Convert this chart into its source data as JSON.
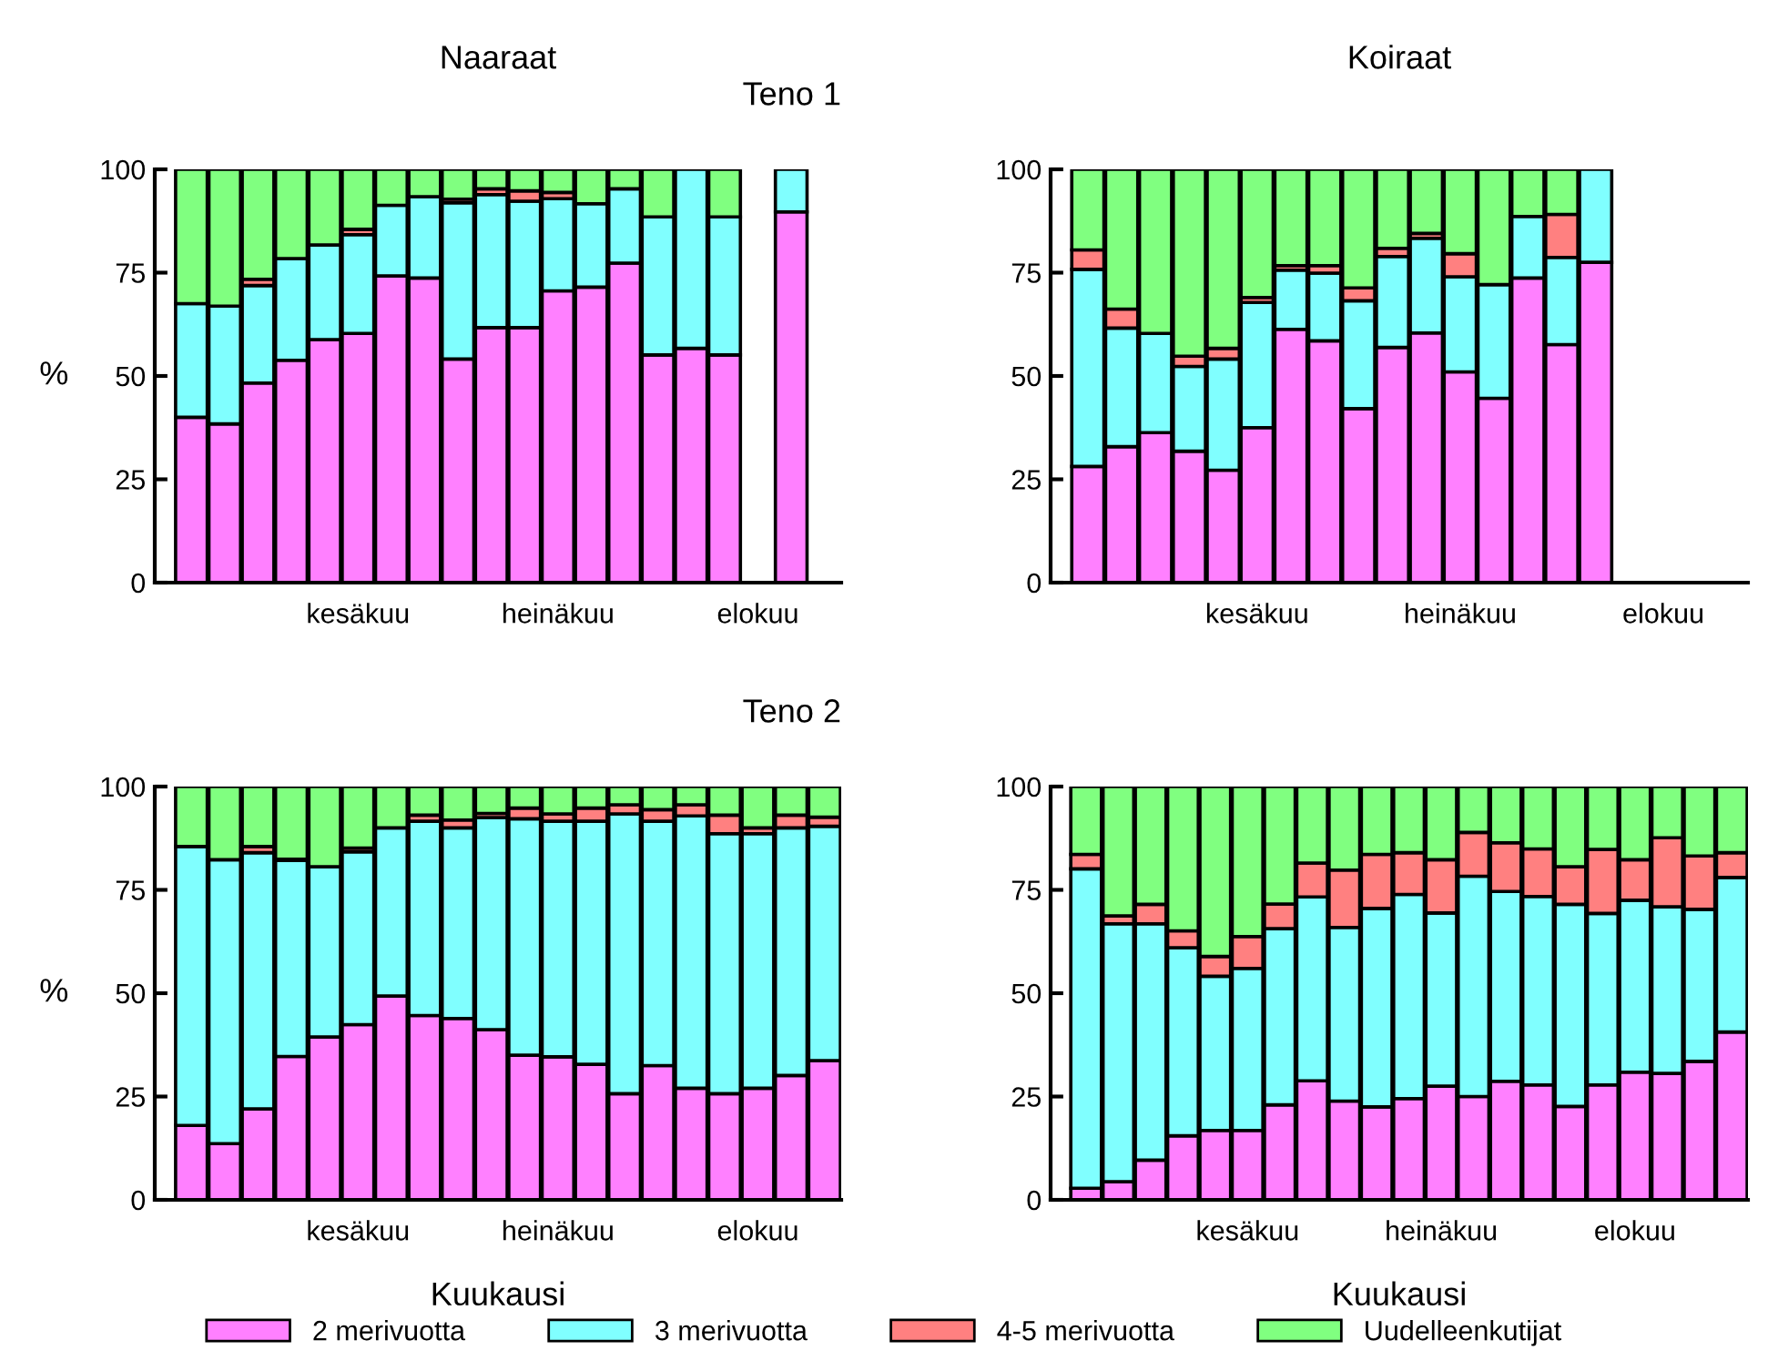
{
  "chart_data": [
    {
      "type": "bar",
      "stacked": true,
      "title": "Naaraat",
      "subtitle": "Teno 1",
      "ylabel": "%",
      "grid": false,
      "ylim": [
        0,
        100
      ],
      "yticks": [
        0,
        25,
        50,
        75,
        100
      ],
      "categories": [
        null,
        null,
        null,
        null,
        null,
        "kesäkuu",
        null,
        null,
        null,
        null,
        null,
        "heinäkuu",
        null,
        null,
        null,
        null,
        null,
        "elokuu",
        null,
        null
      ],
      "series": [
        {
          "color": "#ff80ff",
          "values": [
            40,
            38.4,
            48.3,
            53.8,
            58.8,
            60.3,
            74.2,
            73.7,
            54.1,
            61.7,
            61.7,
            70.6,
            71.5,
            77.3,
            55.1,
            56.7,
            55.1,
            null,
            89.7,
            null
          ]
        },
        {
          "color": "#80ffff",
          "values": [
            27.5,
            28.5,
            23.6,
            24.6,
            22.9,
            23.9,
            17.1,
            19.7,
            37.8,
            32.2,
            30.6,
            22.3,
            20.2,
            18,
            33.4,
            43.3,
            33.4,
            null,
            10.3,
            null
          ]
        },
        {
          "color": "#ff8080",
          "values": [
            0,
            0,
            1.5,
            0,
            0,
            1.3,
            null,
            null,
            0.9,
            1.4,
            2.5,
            1.5,
            0,
            0,
            0,
            0,
            0,
            null,
            0,
            null
          ]
        },
        {
          "color": "#80ff80",
          "values": [
            32.5,
            33.1,
            26.6,
            21.6,
            18.3,
            14.5,
            8.7,
            6.6,
            7.2,
            4.7,
            5.2,
            5.6,
            8.3,
            4.7,
            11.5,
            0,
            11.5,
            null,
            0,
            null
          ]
        }
      ]
    },
    {
      "type": "bar",
      "stacked": true,
      "title": "Koiraat",
      "grid": false,
      "ylim": [
        0,
        100
      ],
      "yticks": [
        0,
        25,
        50,
        75,
        100
      ],
      "categories": [
        null,
        null,
        null,
        null,
        null,
        "kesäkuu",
        null,
        null,
        null,
        null,
        null,
        "heinäkuu",
        null,
        null,
        null,
        null,
        null,
        "elokuu",
        null,
        null
      ],
      "series": [
        {
          "color": "#ff80ff",
          "values": [
            28.1,
            32.9,
            36.3,
            31.8,
            27.2,
            37.5,
            61.3,
            58.5,
            42.1,
            56.9,
            60.4,
            51,
            44.6,
            73.7,
            57.6,
            77.5,
            null,
            null,
            null,
            null
          ]
        },
        {
          "color": "#80ffff",
          "values": [
            47.7,
            28.7,
            24,
            20.5,
            26.9,
            30.3,
            14.3,
            16.4,
            26.1,
            22,
            22.9,
            23,
            27.5,
            14.9,
            21.1,
            22.5,
            null,
            null,
            null,
            null
          ]
        },
        {
          "color": "#ff8080",
          "values": [
            4.7,
            4.6,
            0,
            2.5,
            2.6,
            1.2,
            1.1,
            1.8,
            3.1,
            2,
            1.2,
            5.6,
            0,
            0,
            10.4,
            0,
            null,
            null,
            null,
            null
          ]
        },
        {
          "color": "#80ff80",
          "values": [
            19.5,
            33.8,
            39.7,
            45.2,
            43.3,
            31,
            23.3,
            23.3,
            28.7,
            19.1,
            15.5,
            20.4,
            27.9,
            11.4,
            10.9,
            0,
            null,
            null,
            null,
            null
          ]
        }
      ]
    },
    {
      "type": "bar",
      "stacked": true,
      "subtitle": "Teno 2",
      "ylabel": "%",
      "xlabel": "Kuukausi",
      "grid": false,
      "ylim": [
        0,
        100
      ],
      "yticks": [
        0,
        25,
        50,
        75,
        100
      ],
      "categories": [
        null,
        null,
        null,
        null,
        null,
        "kesäkuu",
        null,
        null,
        null,
        null,
        null,
        "heinäkuu",
        null,
        null,
        null,
        null,
        null,
        "elokuu",
        null,
        null
      ],
      "series": [
        {
          "color": "#ff80ff",
          "values": [
            18,
            13.6,
            22,
            34.7,
            39.4,
            42.4,
            49.3,
            44.6,
            43.9,
            41.2,
            35,
            34.6,
            32.8,
            25.7,
            32.5,
            27,
            25.7,
            27,
            30.1,
            33.7
          ]
        },
        {
          "color": "#80ffff",
          "values": [
            67.5,
            68.7,
            62,
            47.4,
            41.2,
            41.8,
            40.7,
            47,
            46.1,
            51.3,
            57.2,
            57,
            58.8,
            67.7,
            59.1,
            65.9,
            62.9,
            61.6,
            59.9,
            56.7
          ]
        },
        {
          "color": "#ff8080",
          "values": [
            0,
            0,
            1.5,
            0.3,
            0,
            0.9,
            null,
            1.5,
            1.9,
            1,
            2.6,
            1.8,
            3.2,
            2.2,
            2.8,
            2.7,
            4.5,
            1.4,
            3.1,
            2.2
          ]
        },
        {
          "color": "#80ff80",
          "values": [
            14.5,
            17.7,
            14.5,
            17.6,
            19.4,
            14.9,
            10,
            6.9,
            8.1,
            6.5,
            5.2,
            6.6,
            5.2,
            4.4,
            5.6,
            4.4,
            6.9,
            10,
            6.9,
            7.4
          ]
        }
      ]
    },
    {
      "type": "bar",
      "stacked": true,
      "xlabel": "Kuukausi",
      "grid": false,
      "legend": "bottom",
      "ylim": [
        0,
        100
      ],
      "yticks": [
        0,
        25,
        50,
        75,
        100
      ],
      "categories": [
        null,
        null,
        null,
        null,
        null,
        "kesäkuu",
        null,
        null,
        null,
        null,
        null,
        "heinäkuu",
        null,
        null,
        null,
        null,
        null,
        "elokuu",
        null,
        null,
        null
      ],
      "series": [
        {
          "name": "2 merivuotta",
          "color": "#ff80ff",
          "values": [
            2.8,
            4.4,
            9.6,
            15.5,
            16.8,
            16.8,
            23,
            28.8,
            23.9,
            22.5,
            24.5,
            27.5,
            25,
            28.7,
            27.8,
            22.6,
            27.8,
            30.9,
            30.6,
            33.5,
            40.6
          ]
        },
        {
          "name": "3 merivuotta",
          "color": "#80ffff",
          "values": [
            77.3,
            62.4,
            57.2,
            45.5,
            37.3,
            39.2,
            42.6,
            44.5,
            42,
            48,
            49.4,
            41.9,
            53.3,
            45.9,
            45.6,
            48.9,
            41.5,
            41.6,
            40.3,
            36.8,
            37.4
          ]
        },
        {
          "name": "4-5 merivuotta",
          "color": "#ff8080",
          "values": [
            3.5,
            1.9,
            4.7,
            4.1,
            4.8,
            7.7,
            6,
            8.2,
            13.9,
            13.1,
            10.1,
            12.9,
            10.6,
            11.8,
            11.5,
            9.1,
            15.5,
            9.8,
            16.7,
            12.9,
            6
          ]
        },
        {
          "name": "Uudelleenkutijat",
          "color": "#80ff80",
          "values": [
            16.4,
            31.3,
            28.5,
            34.9,
            41.1,
            36.3,
            28.4,
            18.5,
            20.2,
            16.4,
            16,
            17.7,
            11.1,
            13.6,
            15.1,
            19.4,
            15.2,
            17.7,
            12.4,
            16.8,
            16
          ]
        }
      ]
    }
  ]
}
